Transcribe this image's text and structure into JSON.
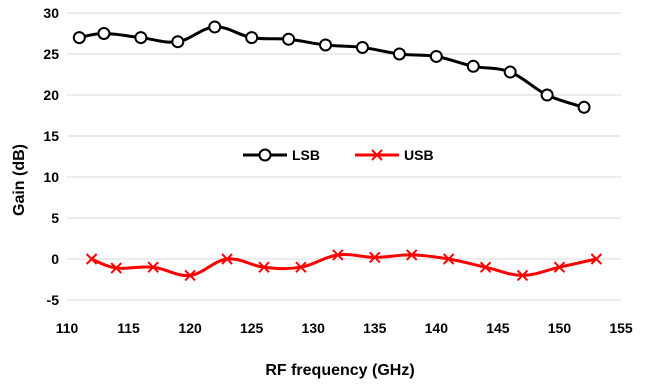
{
  "chart_data": {
    "type": "line",
    "xlabel": "RF frequency (GHz)",
    "ylabel": "Gain (dB)",
    "xlim": [
      110,
      155
    ],
    "ylim": [
      -5,
      30
    ],
    "x_ticks": [
      "110",
      "115",
      "120",
      "125",
      "130",
      "135",
      "140",
      "145",
      "150",
      "155"
    ],
    "y_ticks": [
      "-5",
      "0",
      "5",
      "10",
      "15",
      "20",
      "25",
      "30"
    ],
    "grid": "horizontal",
    "legend_position": "center",
    "series": [
      {
        "name": "LSB",
        "marker": "circle",
        "color": "#000000",
        "x": [
          111,
          113,
          116,
          119,
          122,
          125,
          128,
          131,
          134,
          137,
          140,
          143,
          146,
          149,
          152
        ],
        "y": [
          27.0,
          27.5,
          27.0,
          26.5,
          28.3,
          27.0,
          26.8,
          26.1,
          25.8,
          25.0,
          24.7,
          23.5,
          22.8,
          20.0,
          18.5
        ]
      },
      {
        "name": "USB",
        "marker": "x",
        "color": "#ff0000",
        "x": [
          112,
          114,
          117,
          120,
          123,
          126,
          129,
          132,
          135,
          138,
          141,
          144,
          147,
          150,
          153
        ],
        "y": [
          0.0,
          -1.1,
          -1.0,
          -2.0,
          0.0,
          -1.0,
          -1.0,
          0.5,
          0.2,
          0.5,
          0.0,
          -1.0,
          -2.0,
          -1.0,
          0.0
        ]
      }
    ]
  }
}
